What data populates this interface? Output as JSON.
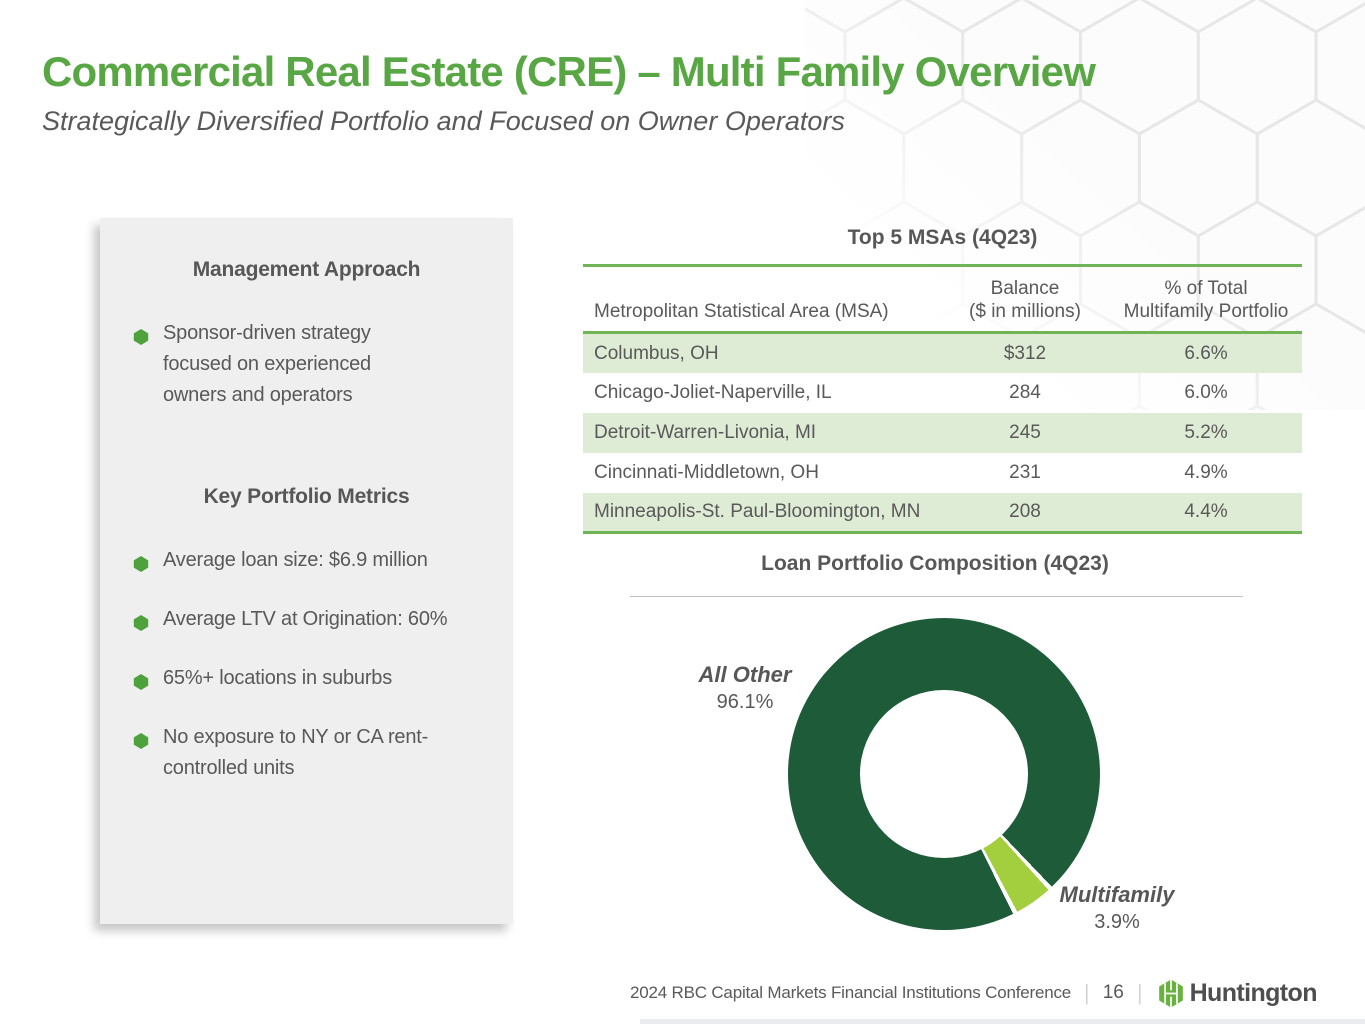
{
  "header": {
    "title": "Commercial Real Estate (CRE) – Multi Family Overview",
    "subtitle": "Strategically Diversified Portfolio and Focused on Owner Operators"
  },
  "panel": {
    "management": {
      "heading": "Management Approach",
      "bullets": [
        "Sponsor-driven strategy focused on experienced owners and operators"
      ]
    },
    "metrics": {
      "heading": "Key Portfolio Metrics",
      "bullets": [
        "Average loan size: $6.9 million",
        "Average LTV at Origination: 60%",
        "65%+ locations in suburbs",
        "No exposure to NY or CA rent-controlled units"
      ]
    }
  },
  "msa_table": {
    "title": "Top 5 MSAs (4Q23)",
    "columns": {
      "col1": "Metropolitan Statistical Area (MSA)",
      "col2_line1": "Balance",
      "col2_line2": "($ in millions)",
      "col3_line1": "% of Total",
      "col3_line2": "Multifamily Portfolio"
    },
    "rows": [
      [
        "Columbus, OH",
        "$312",
        "6.6%"
      ],
      [
        "Chicago-Joliet-Naperville, IL",
        "284",
        "6.0%"
      ],
      [
        "Detroit-Warren-Livonia, MI",
        "245",
        "5.2%"
      ],
      [
        "Cincinnati-Middletown, OH",
        "231",
        "4.9%"
      ],
      [
        "Minneapolis-St. Paul-Bloomington, MN",
        "208",
        "4.4%"
      ]
    ]
  },
  "chart_data": {
    "type": "pie",
    "donut": true,
    "title": "Loan Portfolio Composition (4Q23)",
    "slices": [
      {
        "label": "All Other",
        "value": 96.1,
        "color": "#1d5b39"
      },
      {
        "label": "Multifamily",
        "value": 3.9,
        "color": "#a3cf3e"
      }
    ],
    "labels": {
      "all_other": {
        "name": "All Other",
        "pct": "96.1%"
      },
      "multifamily": {
        "name": "Multifamily",
        "pct": "3.9%"
      }
    },
    "legend_position": "none",
    "multifamily_slice_center_deg_clockwise_from_top": 145
  },
  "footer": {
    "conference": "2024 RBC Capital Markets Financial Institutions Conference",
    "page": "16",
    "brand": "Huntington"
  },
  "colors": {
    "title_green": "#58a744",
    "bullet_green": "#4da23c",
    "table_border_green": "#6fb457",
    "row_band": "#dfecd5",
    "donut_dark_green": "#1d5b39",
    "donut_light_green": "#a3cf3e",
    "logo_green": "#6ab23f",
    "text_gray": "#595959",
    "panel_bg": "#efefef"
  }
}
